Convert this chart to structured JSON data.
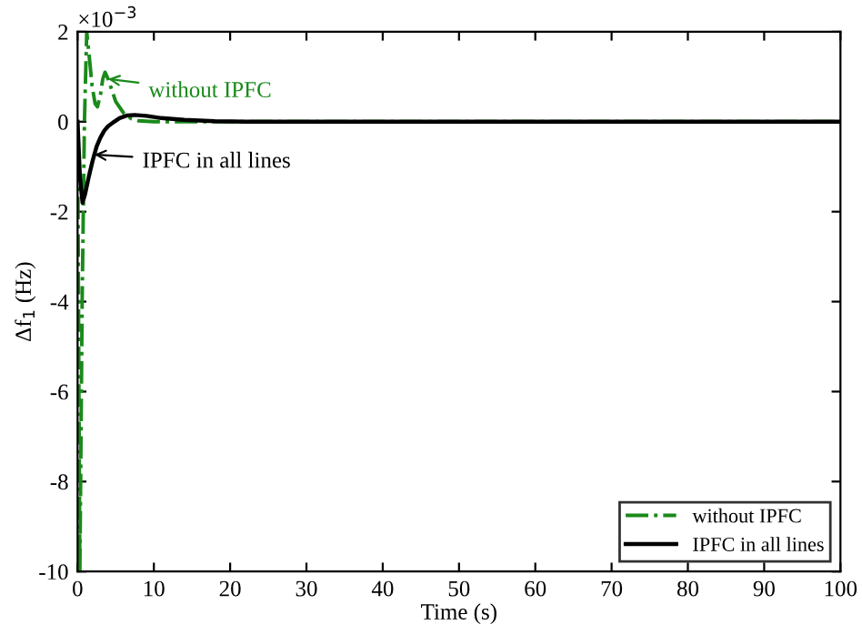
{
  "chart_data": {
    "type": "line",
    "xlabel": "Time (s)",
    "ylabel": "Δf$_{1}$ (Hz)",
    "xlim": [
      0,
      100
    ],
    "ylim": [
      -10,
      2
    ],
    "xticks": [
      0,
      10,
      20,
      30,
      40,
      50,
      60,
      70,
      80,
      90,
      100
    ],
    "yticks": [
      -10,
      -8,
      -6,
      -4,
      -2,
      0,
      2
    ],
    "grid": false,
    "legend": "bottom right",
    "marker": "none",
    "annotations": [
      "×10$^{−3}$",
      {
        "text": "without IPFC",
        "x": 4.0,
        "y": 0.95
      },
      {
        "text": "IPFC in all lines",
        "x": 2.2,
        "y": -0.73
      }
    ],
    "series": [
      {
        "name": "without IPFC",
        "color": "#1a8a1a",
        "line_style": "dashed",
        "x": [
          0,
          0.3,
          0.6,
          0.9,
          1.2,
          1.5,
          1.9,
          2.3,
          2.6,
          3.0,
          3.3,
          3.6,
          4.0,
          4.5,
          5,
          6,
          7,
          8,
          10,
          15,
          20,
          100
        ],
        "values": [
          0,
          -10,
          -4,
          0,
          2,
          1.5,
          0.8,
          0.4,
          0.33,
          0.6,
          0.95,
          1.1,
          0.95,
          0.7,
          0.45,
          0.2,
          0.07,
          0.02,
          0,
          0,
          0,
          0
        ]
      },
      {
        "name": "IPFC in all lines",
        "color": "#000000",
        "line_style": "solid",
        "x": [
          0,
          0.3,
          0.65,
          1,
          1.5,
          2,
          2.5,
          3,
          3.5,
          4,
          4.8,
          5.5,
          6.5,
          7.5,
          9,
          11,
          14,
          18,
          22,
          100
        ],
        "values": [
          0,
          -1.2,
          -1.8,
          -1.6,
          -1.2,
          -0.85,
          -0.55,
          -0.35,
          -0.2,
          -0.1,
          0,
          0.08,
          0.14,
          0.15,
          0.13,
          0.08,
          0.04,
          0.01,
          0,
          0
        ]
      }
    ]
  }
}
